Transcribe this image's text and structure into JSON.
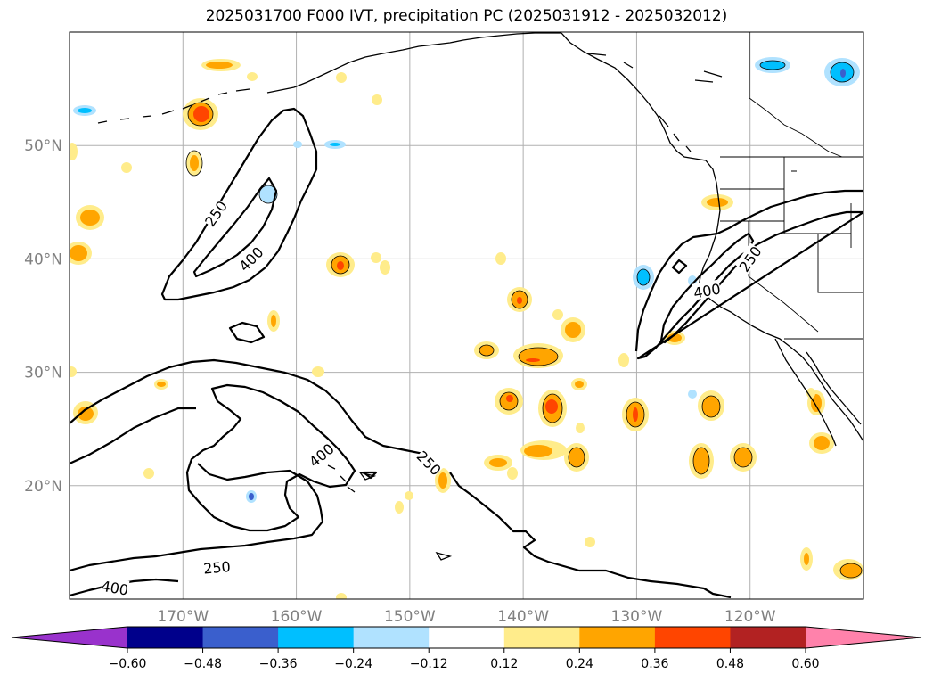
{
  "title": "2025031700 F000 IVT, precipitation PC (2025031912 - 2025032012)",
  "map": {
    "projection": "PlateCarree",
    "lon_range": [
      -180,
      -110
    ],
    "lat_range": [
      10,
      60
    ],
    "gridlines": true,
    "lon_ticks": [
      {
        "value": -170,
        "label": "170°W"
      },
      {
        "value": -160,
        "label": "160°W"
      },
      {
        "value": -150,
        "label": "150°W"
      },
      {
        "value": -140,
        "label": "140°W"
      },
      {
        "value": -130,
        "label": "130°W"
      },
      {
        "value": -120,
        "label": "120°W"
      }
    ],
    "lat_ticks": [
      {
        "value": 20,
        "label": "20°N"
      },
      {
        "value": 30,
        "label": "30°N"
      },
      {
        "value": 40,
        "label": "40°N"
      },
      {
        "value": 50,
        "label": "50°N"
      }
    ],
    "ivt_contour_levels": [
      250,
      400
    ],
    "contour_labels": [
      {
        "text": "250",
        "lon": -167.1,
        "lat": 44.0,
        "angle": -55
      },
      {
        "text": "400",
        "lon": -164.0,
        "lat": 40.0,
        "angle": -45
      },
      {
        "text": "400",
        "lon": -157.8,
        "lat": 22.7,
        "angle": -40
      },
      {
        "text": "250",
        "lon": -148.3,
        "lat": 22.0,
        "angle": 45
      },
      {
        "text": "250",
        "lon": -167.0,
        "lat": 12.8,
        "angle": -5
      },
      {
        "text": "400",
        "lon": -176.0,
        "lat": 11.0,
        "angle": 10
      },
      {
        "text": "250",
        "lon": -120.0,
        "lat": 40.0,
        "angle": -55
      },
      {
        "text": "400",
        "lon": -123.8,
        "lat": 37.2,
        "angle": -10
      }
    ]
  },
  "colorbar": {
    "bounds": [
      "−0.60",
      "−0.48",
      "−0.36",
      "−0.24",
      "−0.12",
      "0.12",
      "0.24",
      "0.36",
      "0.48",
      "0.60"
    ],
    "colors": [
      "#9932CC",
      "#00008B",
      "#3A5FCD",
      "#00BFFF",
      "#B0E2FF",
      "#FFFFFF",
      "#FFEC8B",
      "#FFA500",
      "#FF4500",
      "#B22222",
      "#FF82AB"
    ],
    "extend": "both"
  }
}
